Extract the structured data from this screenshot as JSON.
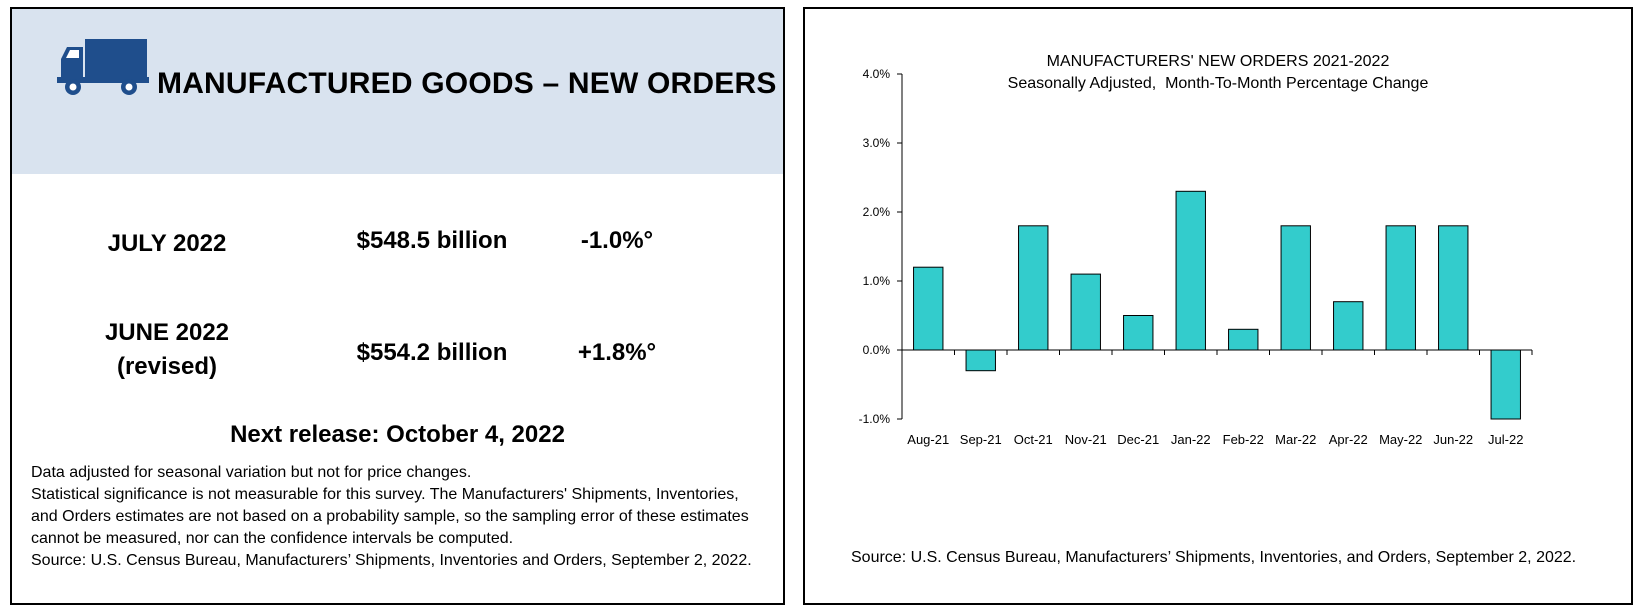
{
  "left_panel": {
    "title": "MANUFACTURED GOODS – NEW ORDERS",
    "icon": "truck-icon",
    "rows": [
      {
        "period_line1": "JULY 2022",
        "period_line2": "",
        "amount": "$548.5 billion",
        "change": "-1.0%°"
      },
      {
        "period_line1": "JUNE 2022",
        "period_line2": "(revised)",
        "amount": "$554.2 billion",
        "change": "+1.8%°"
      }
    ],
    "next_release": "Next release: October 4, 2022",
    "notes": [
      "Data adjusted for seasonal variation but not for price changes.",
      "Statistical significance is not measurable for this survey.  The Manufacturers' Shipments, Inventories, and Orders estimates are not based on a probability sample, so the sampling error of these estimates cannot be measured, nor can the confidence intervals be computed.",
      "Source: U.S. Census Bureau, Manufacturers’ Shipments, Inventories and Orders, September 2, 2022."
    ],
    "colors": {
      "header_band": "#d9e3ef",
      "icon": "#1f4e8c"
    }
  },
  "chart_data": {
    "type": "bar",
    "title": "MANUFACTURERS' NEW ORDERS 2021-2022",
    "subtitle": "Seasonally Adjusted,  Month-To-Month Percentage Change",
    "categories": [
      "Aug-21",
      "Sep-21",
      "Oct-21",
      "Nov-21",
      "Dec-21",
      "Jan-22",
      "Feb-22",
      "Mar-22",
      "Apr-22",
      "May-22",
      "Jun-22",
      "Jul-22"
    ],
    "values": [
      1.2,
      -0.3,
      1.8,
      1.1,
      0.5,
      2.3,
      0.3,
      1.8,
      0.7,
      1.8,
      1.8,
      -1.0
    ],
    "ylim": [
      -1.0,
      4.0
    ],
    "yticks": [
      -1.0,
      0.0,
      1.0,
      2.0,
      3.0,
      4.0
    ],
    "ytick_labels": [
      "-1.0%",
      "0.0%",
      "1.0%",
      "2.0%",
      "3.0%",
      "4.0%"
    ],
    "xlabel": "",
    "ylabel": "",
    "grid": false,
    "legend": "none",
    "bar_color": "#33cccc",
    "source": "Source: U.S. Census Bureau, Manufacturers’ Shipments, Inventories, and Orders, September 2, 2022."
  }
}
